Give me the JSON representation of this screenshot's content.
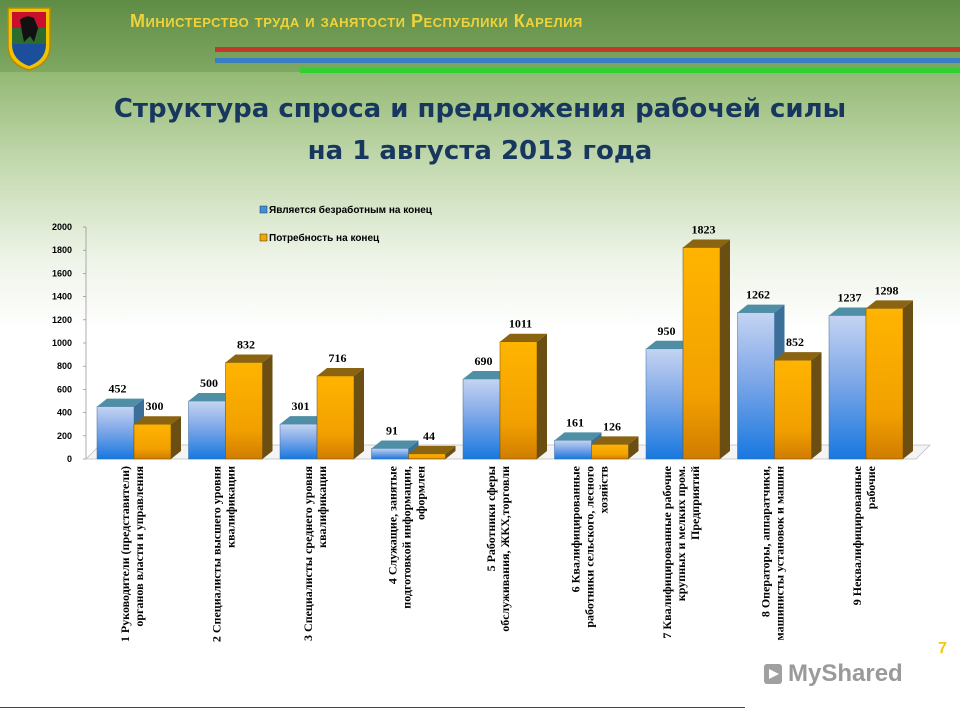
{
  "header": {
    "ministry": "Министерство труда и занятости Республики Карелия"
  },
  "title_line1": "Структура спроса и предложения рабочей силы",
  "title_line2": "на 1 августа 2013 года",
  "page_number": "7",
  "watermark": "MyShared",
  "colors": {
    "unemployed": "#3d8fe0",
    "demand": "#f5a400",
    "title": "#17375e",
    "ministry": "#f0d23a"
  },
  "chart_data": {
    "type": "bar",
    "ylim": [
      0,
      2000
    ],
    "yticks": [
      "0",
      "200",
      "400",
      "600",
      "800",
      "1000",
      "1200",
      "1400",
      "1600",
      "1800",
      "2000"
    ],
    "legend_position": "top",
    "categories": [
      "1 Руководители (представители) органов власти и управления",
      "2 Специалисты высшего уровня квалификации",
      "3 Специалисты среднего уровня квалификации",
      "4 Служащие, занятые подготовкой информации, оформлен",
      "5 Работники сферы обслуживания, ЖКХ,торговли",
      "6 Квалифицированные работники сельского, лесного хозяйств",
      "7 Квалифицированные рабочие крупных и мелких пром. Предприятий",
      "8 Операторы, аппаратчики, машинисты установок и машин",
      "9 Неквалифицированные рабочие"
    ],
    "category_lines": [
      [
        "1 Руководители (представители)",
        "органов власти и управления"
      ],
      [
        "2 Специалисты высшего уровня",
        "квалификации"
      ],
      [
        "3 Специалисты среднего уровня",
        "квалификации"
      ],
      [
        "4 Служащие, занятые",
        "подготовкой информации,",
        "оформлен"
      ],
      [
        "5 Работники сферы",
        "обслуживания, ЖКХ,торговли"
      ],
      [
        "6 Квалифицированные",
        "работники сельского, лесного",
        "хозяйств"
      ],
      [
        "7 Квалифицированные рабочие",
        "крупных и мелких пром.",
        "Предприятий"
      ],
      [
        "8 Операторы, аппаратчики,",
        "машинисты установок и машин"
      ],
      [
        "9 Неквалифицированные",
        "рабочие"
      ]
    ],
    "series": [
      {
        "name": "Является безработным на конец",
        "values": [
          452,
          500,
          301,
          91,
          690,
          161,
          950,
          1262,
          1237
        ]
      },
      {
        "name": "Потребность на конец",
        "values": [
          300,
          832,
          716,
          44,
          1011,
          126,
          1823,
          852,
          1298
        ]
      }
    ]
  }
}
